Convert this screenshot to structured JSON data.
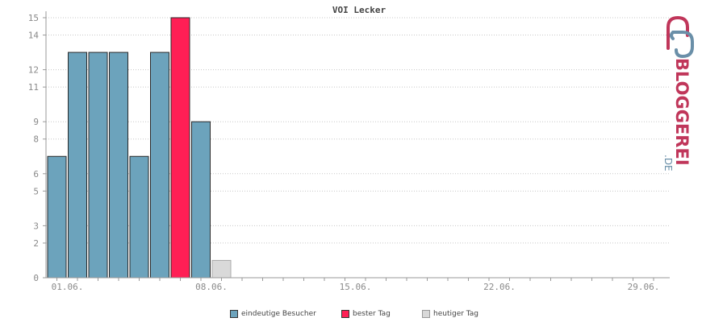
{
  "chart_data": {
    "type": "bar",
    "title": "VOI Lecker",
    "y_ticks": [
      "0",
      "2",
      "3",
      "5",
      "6",
      "8",
      "9",
      "11",
      "12",
      "14",
      "15"
    ],
    "ylim": [
      0,
      15
    ],
    "x_tick_labels": [
      {
        "day": 1,
        "label": "01.06."
      },
      {
        "day": 8,
        "label": "08.06."
      },
      {
        "day": 15,
        "label": "15.06."
      },
      {
        "day": 22,
        "label": "22.06."
      },
      {
        "day": 29,
        "label": "29.06."
      }
    ],
    "x_range": [
      1,
      30
    ],
    "series": [
      {
        "name": "eindeutige Besucher",
        "color": "#6ca3bc",
        "points": [
          {
            "day": 1,
            "value": 7
          },
          {
            "day": 2,
            "value": 13
          },
          {
            "day": 3,
            "value": 13
          },
          {
            "day": 4,
            "value": 13
          },
          {
            "day": 5,
            "value": 7
          },
          {
            "day": 6,
            "value": 13
          },
          {
            "day": 8,
            "value": 9
          }
        ]
      },
      {
        "name": "bester Tag",
        "color": "#ff1f55",
        "points": [
          {
            "day": 7,
            "value": 15
          }
        ]
      },
      {
        "name": "heutiger Tag",
        "color": "#d9d9d9",
        "points": [
          {
            "day": 9,
            "value": 1
          }
        ]
      }
    ],
    "grid": true,
    "legend_position": "bottom"
  },
  "logo": {
    "text_main": "BLOGGEREI",
    "text_suffix": ".DE",
    "color_main": "#c0365a",
    "color_suffix": "#6a8fa8"
  }
}
